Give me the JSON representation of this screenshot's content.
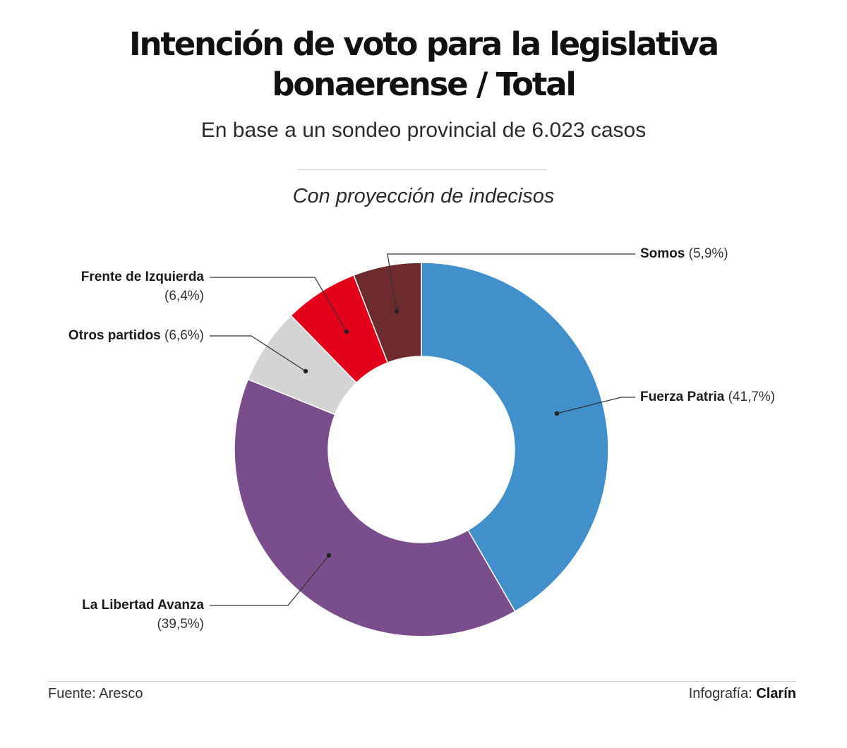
{
  "title_line1": "Intención de voto para la legislativa",
  "title_line2": "bonaerense / Total",
  "subtitle": "En base a un sondeo provincial de 6.023 casos",
  "note": "Con proyección de indecisos",
  "chart_data": {
    "type": "pie",
    "title": "Intención de voto para la legislativa bonaerense / Total",
    "subtitle": "En base a un sondeo provincial de 6.023 casos",
    "slices": [
      {
        "name": "Fuerza Patria",
        "value": 41.7,
        "label": "(41,7%)",
        "color": "#418fcb"
      },
      {
        "name": "La Libertad Avanza",
        "value": 39.5,
        "label": "(39,5%)",
        "color": "#7a4e8c"
      },
      {
        "name": "Otros partidos",
        "value": 6.6,
        "label": "(6,6%)",
        "color": "#d4d4d4"
      },
      {
        "name": "Frente de Izquierda",
        "value": 6.4,
        "label": "(6,4%)",
        "color": "#e3001b"
      },
      {
        "name": "Somos",
        "value": 5.9,
        "label": "(5,9%)",
        "color": "#6e2b2e"
      }
    ]
  },
  "footer": {
    "source": "Fuente: Aresco",
    "credit_prefix": "Infografía:",
    "credit_brand": "Clarín"
  }
}
